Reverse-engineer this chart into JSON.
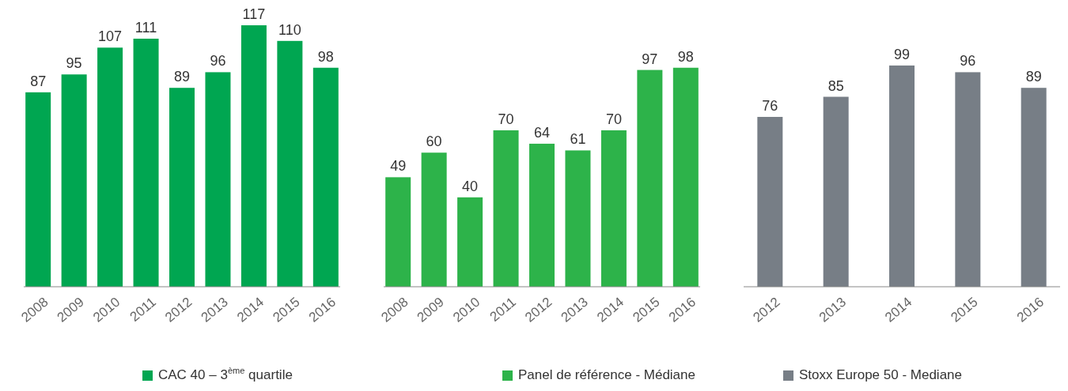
{
  "chart_data": [
    {
      "type": "bar",
      "categories": [
        "2008",
        "2009",
        "2010",
        "2011",
        "2012",
        "2013",
        "2014",
        "2015",
        "2016"
      ],
      "series": [
        {
          "name": "CAC 40 – 3$^{ème}$ quartile",
          "color": "#00a651",
          "values": [
            87,
            95,
            107,
            111,
            89,
            96,
            117,
            110,
            98
          ]
        }
      ],
      "data_labels": true,
      "legend": "bottom"
    },
    {
      "type": "bar",
      "categories": [
        "2008",
        "2009",
        "2010",
        "2011",
        "2012",
        "2013",
        "2014",
        "2015",
        "2016"
      ],
      "series": [
        {
          "name": "Panel de référence - Médiane",
          "color": "#2db34a",
          "values": [
            49,
            60,
            40,
            70,
            64,
            61,
            70,
            97,
            98
          ]
        }
      ],
      "data_labels": true,
      "legend": "bottom"
    },
    {
      "type": "bar",
      "categories": [
        "2012",
        "2013",
        "2014",
        "2015",
        "2016"
      ],
      "series": [
        {
          "name": "Stoxx Europe 50 - Mediane",
          "color": "#777e86",
          "values": [
            76,
            85,
            99,
            96,
            89
          ]
        }
      ],
      "data_labels": true,
      "legend": "bottom"
    }
  ]
}
